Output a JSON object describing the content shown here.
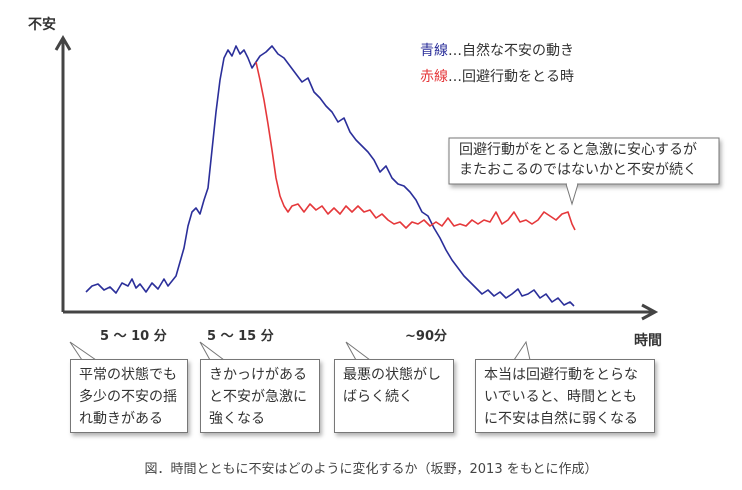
{
  "chart_data": {
    "type": "line",
    "ylabel": "不安",
    "xlabel": "時間",
    "x_tick_labels": [
      "5 ～ 10 分",
      "5 ～ 15 分",
      "~90分"
    ],
    "series": [
      {
        "name": "青線",
        "color": "#2b2f9a",
        "legend_text": "…自然な不安の動き"
      },
      {
        "name": "赤線",
        "color": "#e5383b",
        "legend_text": "…回避行動をとる時"
      }
    ],
    "legend_placement": "top-right",
    "grid": false
  },
  "annotations": {
    "red_note": [
      "回避行動がをとると急激に安心するが",
      "またおこるのではないかと不安が続く"
    ],
    "phase1": [
      "平常の状態でも",
      "多少の不安の揺",
      "れ動きがある"
    ],
    "phase2": [
      "きかっけがある",
      "と不安が急激に",
      "強くなる"
    ],
    "phase3": [
      "最悪の状態がし",
      "ばらく続く"
    ],
    "phase4": [
      "本当は回避行動をとらな",
      "いでいると、時間ととも",
      "に不安は自然に弱くなる"
    ]
  },
  "caption": "図．時間とともに不安はどのように変化するか（坂野，2013 をもとに作成）"
}
